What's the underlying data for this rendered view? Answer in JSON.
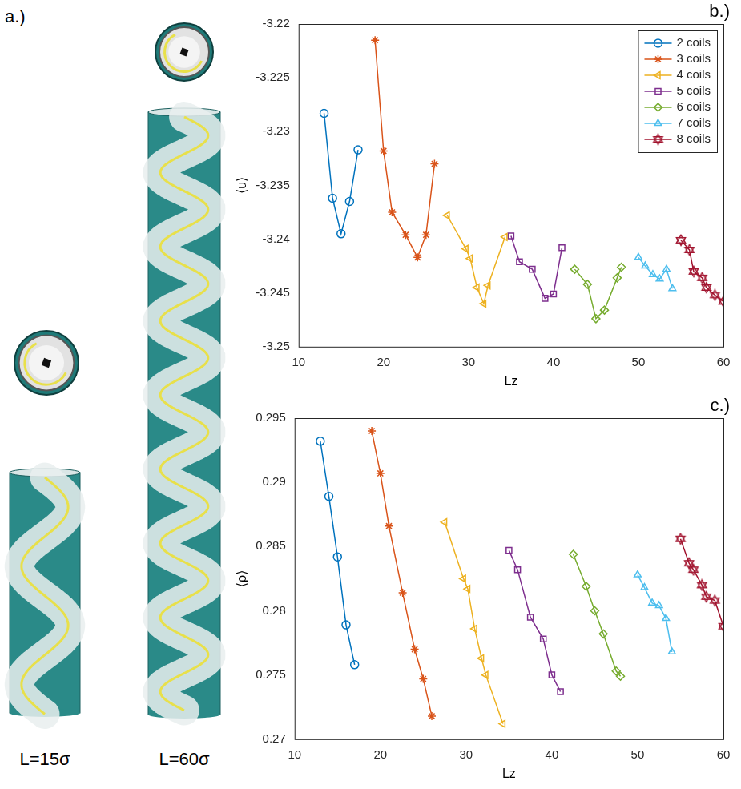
{
  "panel_a": {
    "label": "a.)",
    "captions": [
      "L=15σ",
      "L=60σ"
    ]
  },
  "chart_data": [
    {
      "panel": "b.)",
      "type": "line",
      "xlabel": "Lz",
      "ylabel": "⟨u⟩",
      "xlim": [
        10,
        60
      ],
      "xticks": [
        10,
        20,
        30,
        40,
        50,
        60
      ],
      "ylim": [
        -3.25,
        -3.22
      ],
      "yticks": [
        -3.25,
        -3.245,
        -3.24,
        -3.235,
        -3.23,
        -3.225,
        -3.22
      ],
      "grid": false,
      "legend": "upper right",
      "series": [
        {
          "name": "2 coils",
          "color": "#0072BD",
          "marker": "circle",
          "x": [
            13,
            14,
            15,
            16,
            17
          ],
          "values": [
            -3.2283,
            -3.2362,
            -3.2395,
            -3.2365,
            -3.2317
          ]
        },
        {
          "name": "3 coils",
          "color": "#D95319",
          "marker": "star",
          "x": [
            19,
            20,
            21,
            22.6,
            24,
            25,
            26
          ],
          "values": [
            -3.2215,
            -3.2318,
            -3.2375,
            -3.2396,
            -3.2417,
            -3.2396,
            -3.233
          ]
        },
        {
          "name": "4 coils",
          "color": "#EDB120",
          "marker": "triangle-left",
          "x": [
            27.5,
            29.7,
            30.2,
            31,
            31.8,
            32.3,
            34.3
          ],
          "values": [
            -3.2378,
            -3.2409,
            -3.2418,
            -3.2445,
            -3.246,
            -3.2443,
            -3.2398
          ]
        },
        {
          "name": "5 coils",
          "color": "#7E2F8E",
          "marker": "square",
          "x": [
            35,
            36,
            37.5,
            39,
            40,
            41
          ],
          "values": [
            -3.2397,
            -3.2421,
            -3.2428,
            -3.2455,
            -3.2451,
            -3.2408
          ]
        },
        {
          "name": "6 coils",
          "color": "#77AC30",
          "marker": "diamond",
          "x": [
            42.5,
            44,
            45,
            46,
            47.5,
            48
          ],
          "values": [
            -3.2428,
            -3.2442,
            -3.2474,
            -3.2466,
            -3.2436,
            -3.2426
          ]
        },
        {
          "name": "7 coils",
          "color": "#4DBEEE",
          "marker": "triangle",
          "x": [
            50,
            50.8,
            51.7,
            52.5,
            53.3,
            54
          ],
          "values": [
            -3.2417,
            -3.2425,
            -3.2433,
            -3.2437,
            -3.2428,
            -3.2446
          ]
        },
        {
          "name": "8 coils",
          "color": "#A2142F",
          "marker": "hexagram",
          "x": [
            55,
            56,
            56.5,
            57.5,
            58,
            59,
            60
          ],
          "values": [
            -3.2401,
            -3.241,
            -3.243,
            -3.2436,
            -3.2445,
            -3.2452,
            -3.2458
          ]
        }
      ]
    },
    {
      "panel": "c.)",
      "type": "line",
      "xlabel": "Lz",
      "ylabel": "⟨ρ⟩",
      "xlim": [
        10,
        60
      ],
      "xticks": [
        10,
        20,
        30,
        40,
        50,
        60
      ],
      "ylim": [
        0.27,
        0.295
      ],
      "yticks": [
        0.27,
        0.275,
        0.28,
        0.285,
        0.29,
        0.295
      ],
      "grid": false,
      "series": [
        {
          "color": "#0072BD",
          "marker": "circle",
          "x": [
            13,
            14,
            15,
            16,
            17
          ],
          "values": [
            0.2932,
            0.2889,
            0.2842,
            0.2789,
            0.2758
          ]
        },
        {
          "color": "#D95319",
          "marker": "star",
          "x": [
            19,
            20,
            21,
            22.6,
            24,
            25,
            26
          ],
          "values": [
            0.294,
            0.2907,
            0.2866,
            0.2814,
            0.277,
            0.2747,
            0.2718
          ]
        },
        {
          "color": "#EDB120",
          "marker": "triangle-left",
          "x": [
            27.5,
            29.7,
            30.2,
            31,
            31.8,
            32.3,
            34.3
          ],
          "values": [
            0.2869,
            0.2825,
            0.2817,
            0.2786,
            0.2763,
            0.275,
            0.2712
          ]
        },
        {
          "color": "#7E2F8E",
          "marker": "square",
          "x": [
            35,
            36,
            37.5,
            39,
            40,
            41
          ],
          "values": [
            0.2847,
            0.2832,
            0.2795,
            0.2778,
            0.275,
            0.2737
          ]
        },
        {
          "color": "#77AC30",
          "marker": "diamond",
          "x": [
            42.5,
            44,
            45,
            46,
            47.5,
            48
          ],
          "values": [
            0.2844,
            0.2819,
            0.28,
            0.2782,
            0.2753,
            0.2749
          ]
        },
        {
          "color": "#4DBEEE",
          "marker": "triangle",
          "x": [
            50,
            50.8,
            51.7,
            52.5,
            53.3,
            54
          ],
          "values": [
            0.2828,
            0.2818,
            0.2806,
            0.2804,
            0.2794,
            0.2768
          ]
        },
        {
          "color": "#A2142F",
          "marker": "hexagram",
          "x": [
            55,
            56,
            56.5,
            57.5,
            58,
            59,
            60
          ],
          "values": [
            0.2856,
            0.2837,
            0.2832,
            0.282,
            0.2811,
            0.2808,
            0.2788
          ]
        }
      ]
    }
  ]
}
